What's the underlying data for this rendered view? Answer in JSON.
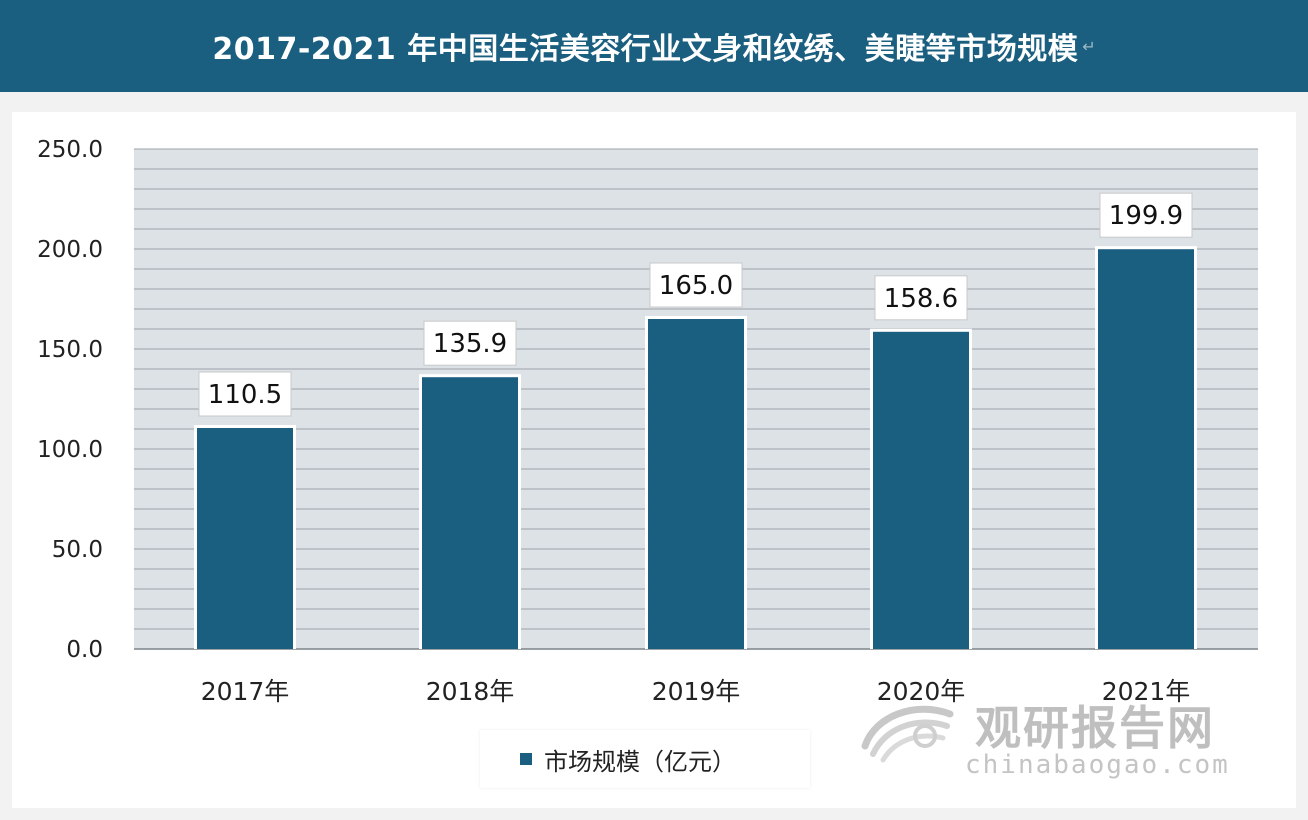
{
  "header": {
    "title": "2017-2021 年中国生活美容行业文身和纹绣、美睫等市场规模",
    "title_mark": "↵"
  },
  "chart_data": {
    "type": "bar",
    "categories": [
      "2017年",
      "2018年",
      "2019年",
      "2020年",
      "2021年"
    ],
    "series": [
      {
        "name": "市场规模（亿元）",
        "values": [
          110.5,
          135.9,
          165.0,
          158.6,
          199.9
        ]
      }
    ],
    "data_labels": [
      "110.5",
      "135.9",
      "165.0",
      "158.6",
      "199.9"
    ],
    "ylim": [
      0,
      250
    ],
    "yticks": [
      "0.0",
      "50.0",
      "100.0",
      "150.0",
      "200.0",
      "250.0"
    ],
    "grid": true,
    "legend_position": "bottom",
    "colors": {
      "bar": "#1a5f7f",
      "plot_bg": "#dde2e6",
      "grid": "#9aa2a8"
    }
  },
  "legend": {
    "label": "市场规模（亿元）"
  },
  "watermark": {
    "cn": "观研报告网",
    "en": "chinabaogao.com"
  }
}
